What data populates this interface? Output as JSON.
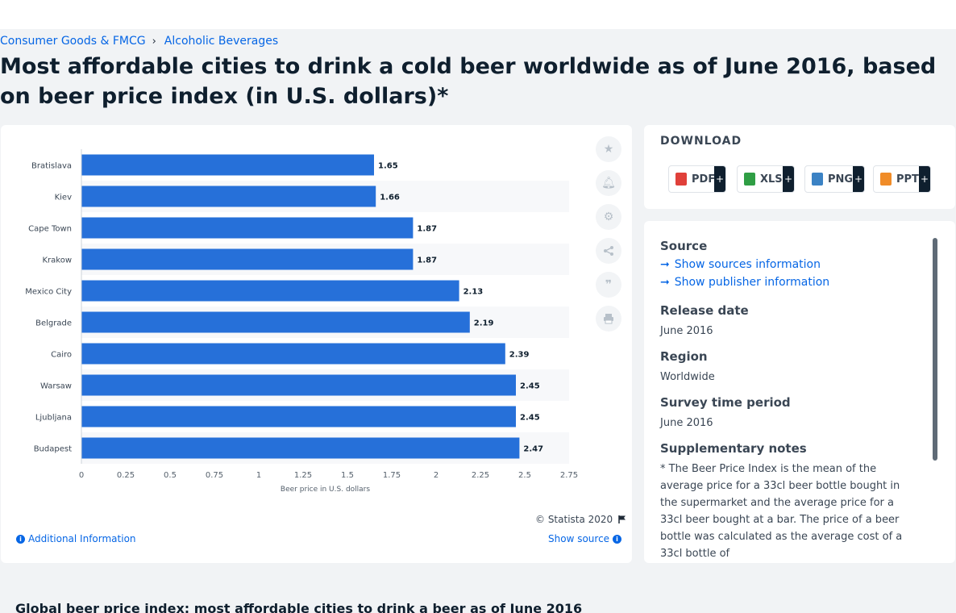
{
  "breadcrumb": {
    "items": [
      "Consumer Goods & FMCG",
      "Alcoholic Beverages"
    ],
    "separator": "›"
  },
  "headline": "Most affordable cities to drink a cold beer worldwide as of June 2016, based on beer price index (in U.S. dollars)*",
  "chart_data": {
    "type": "bar",
    "orientation": "horizontal",
    "categories": [
      "Bratislava",
      "Kiev",
      "Cape Town",
      "Krakow",
      "Mexico City",
      "Belgrade",
      "Cairo",
      "Warsaw",
      "Ljubljana",
      "Budapest"
    ],
    "values": [
      1.65,
      1.66,
      1.87,
      1.87,
      2.13,
      2.19,
      2.39,
      2.45,
      2.45,
      2.47
    ],
    "value_labels": [
      "1.65",
      "1.66",
      "1.87",
      "1.87",
      "2.13",
      "2.19",
      "2.39",
      "2.45",
      "2.45",
      "2.47"
    ],
    "xlabel": "Beer price in U.S. dollars",
    "xlim": [
      0,
      2.75
    ],
    "xticks": [
      "0",
      "0.25",
      "0.5",
      "0.75",
      "1",
      "1.25",
      "1.5",
      "1.75",
      "2",
      "2.25",
      "2.5",
      "2.75"
    ],
    "bar_color": "#2670d9",
    "grid": false,
    "legend": "none"
  },
  "chart_footer": {
    "copyright": "© Statista 2020",
    "additional_info": "Additional Information",
    "show_source": "Show source"
  },
  "toolbar": [
    "star-icon",
    "bell-icon",
    "gear-icon",
    "share-icon",
    "quote-icon",
    "print-icon"
  ],
  "download": {
    "title": "DOWNLOAD",
    "buttons": [
      {
        "label": "PDF",
        "color": "#e0403a"
      },
      {
        "label": "XLS",
        "color": "#2f9e44"
      },
      {
        "label": "PNG",
        "color": "#3b82c4"
      },
      {
        "label": "PPT",
        "color": "#f08c28"
      }
    ],
    "plus": "+"
  },
  "info": {
    "source_heading": "Source",
    "show_sources": "Show sources information",
    "show_publisher": "Show publisher information",
    "release_heading": "Release date",
    "release_value": "June 2016",
    "region_heading": "Region",
    "region_value": "Worldwide",
    "survey_heading": "Survey time period",
    "survey_value": "June 2016",
    "notes_heading": "Supplementary notes",
    "notes_value": "* The Beer Price Index is the mean of the average price for a 33cl beer bottle bought in the supermarket and the average price for a 33cl beer bought at a bar. The price of a beer bottle was calculated as the average cost of a 33cl bottle of"
  },
  "bottom_title": "Global beer price index: most affordable cities to drink a beer as of June 2016"
}
